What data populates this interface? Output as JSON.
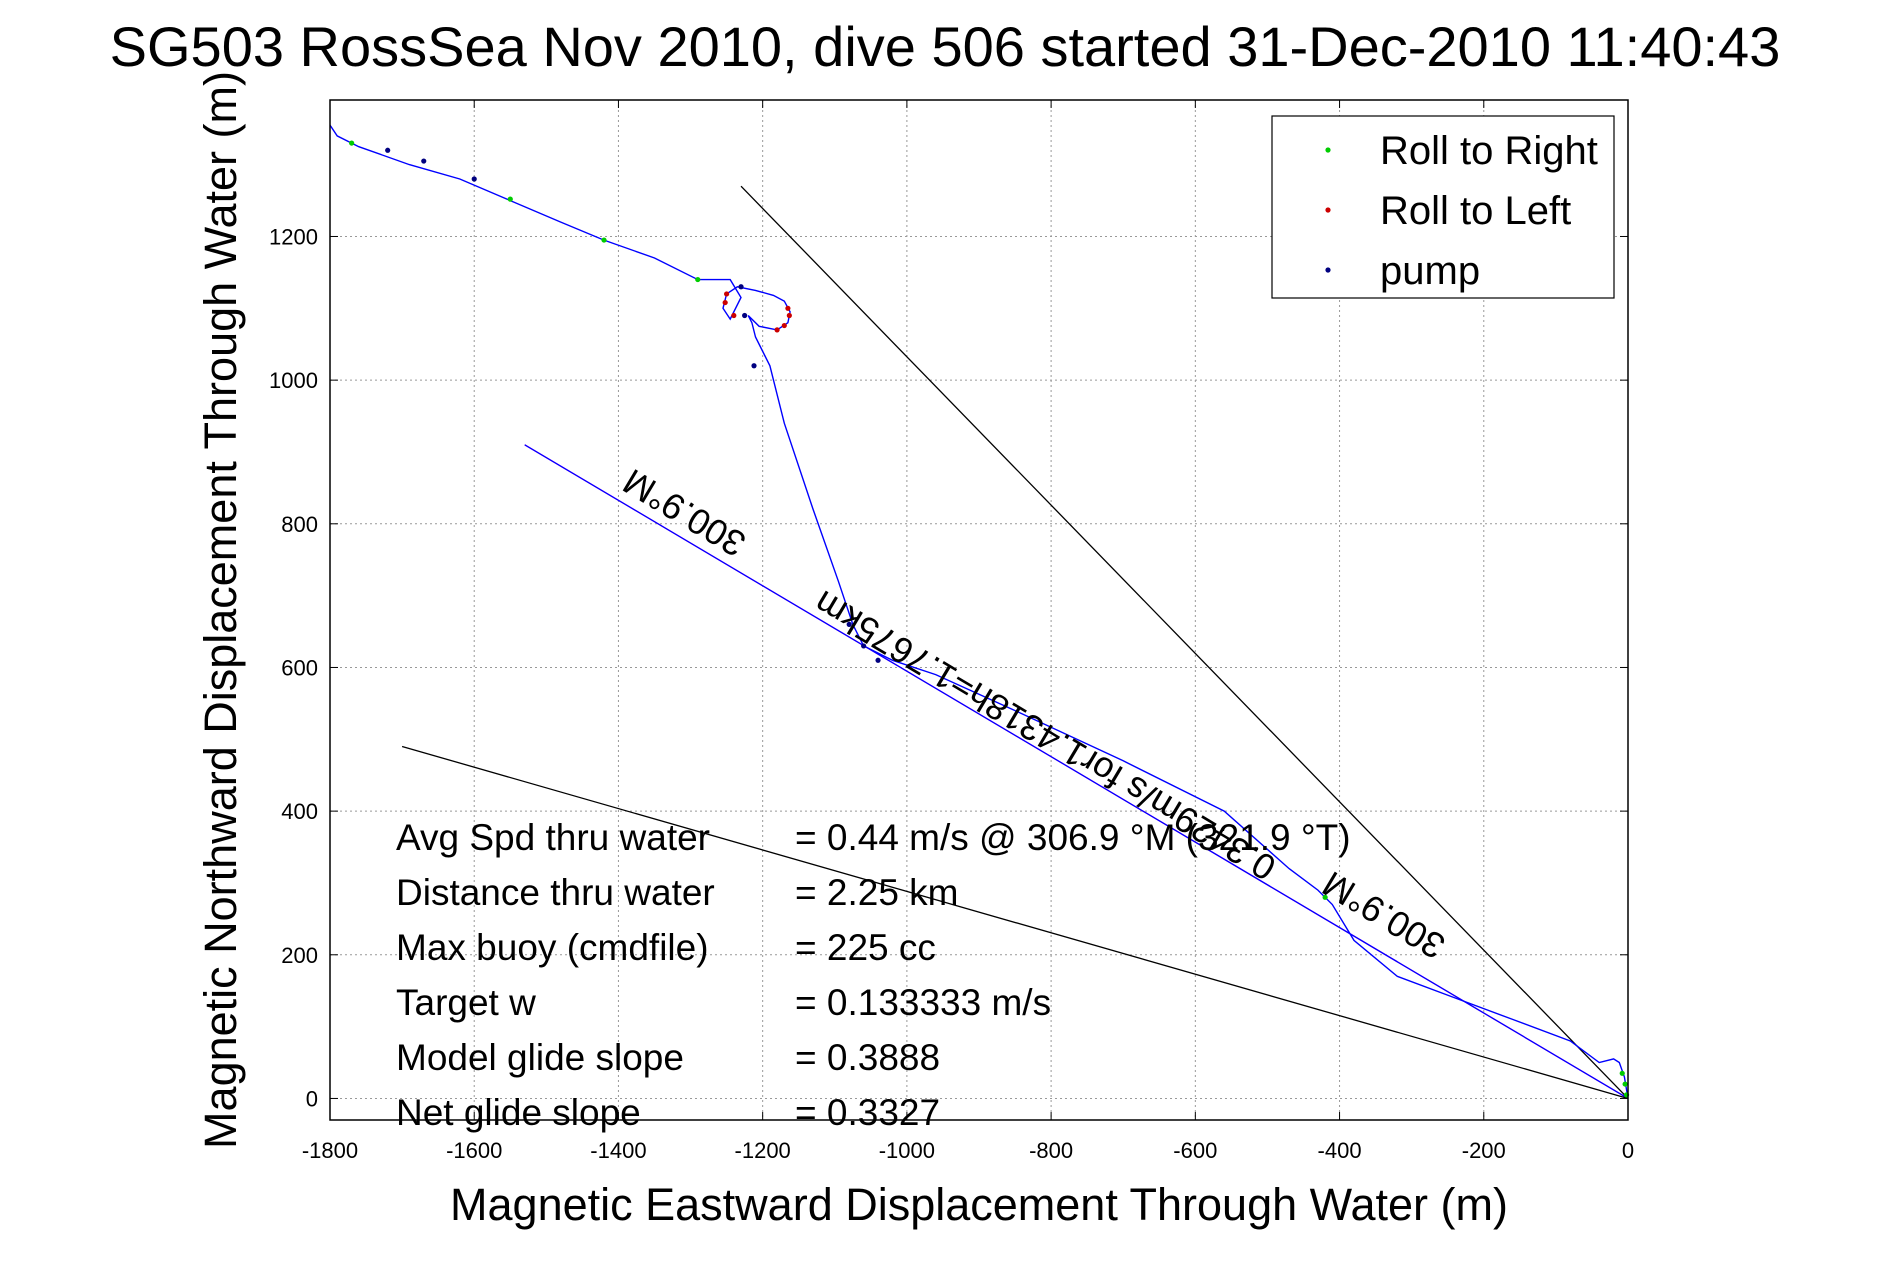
{
  "chart_data": {
    "type": "line",
    "title": "SG503 RossSea Nov 2010, dive 506 started 31-Dec-2010 11:40:43",
    "xlabel": "Magnetic Eastward Displacement Through Water (m)",
    "ylabel": "Magnetic Northward Displacement Through Water (m)",
    "xlim": [
      -1800,
      0
    ],
    "ylim": [
      -30,
      1390
    ],
    "xticks": [
      -1800,
      -1600,
      -1400,
      -1200,
      -1000,
      -800,
      -600,
      -400,
      -200,
      0
    ],
    "yticks": [
      0,
      200,
      400,
      600,
      800,
      1000,
      1200
    ],
    "grid": true,
    "legend_position": "top-right",
    "legend": [
      {
        "label": "Roll to Right",
        "color": "#00cc00"
      },
      {
        "label": "Roll to Left",
        "color": "#cc0000"
      },
      {
        "label": "pump",
        "color": "#000080"
      }
    ],
    "track": {
      "color": "#0000ff",
      "x": [
        0,
        -5,
        -12,
        -20,
        -40,
        -80,
        -160,
        -240,
        -320,
        -380,
        -410,
        -430,
        -470,
        -560,
        -700,
        -850,
        -960,
        -1020,
        -1060,
        -1075,
        -1095,
        -1130,
        -1170,
        -1190,
        -1210,
        -1215,
        -1220,
        -1205,
        -1180,
        -1165,
        -1162,
        -1170,
        -1185,
        -1210,
        -1235,
        -1250,
        -1255,
        -1245,
        -1230,
        -1245,
        -1290,
        -1350,
        -1420,
        -1480,
        -1550,
        -1620,
        -1690,
        -1760,
        -1790,
        -1800
      ],
      "y": [
        0,
        30,
        50,
        55,
        50,
        80,
        110,
        140,
        170,
        220,
        270,
        290,
        320,
        400,
        470,
        540,
        590,
        610,
        630,
        660,
        720,
        820,
        940,
        1020,
        1060,
        1080,
        1090,
        1075,
        1070,
        1080,
        1095,
        1110,
        1118,
        1125,
        1130,
        1120,
        1100,
        1085,
        1115,
        1140,
        1140,
        1170,
        1195,
        1220,
        1250,
        1280,
        1300,
        1325,
        1340,
        1355
      ]
    },
    "roll_right_points": {
      "x": [
        -2,
        -4,
        -8,
        -420,
        -1770,
        -1550,
        -1420,
        -1290
      ],
      "y": [
        5,
        20,
        35,
        280,
        1330,
        1252,
        1195,
        1140
      ]
    },
    "roll_left_points": {
      "x": [
        -1180,
        -1170,
        -1163,
        -1165,
        -1250,
        -1252,
        -1240
      ],
      "y": [
        1070,
        1076,
        1090,
        1100,
        1120,
        1108,
        1090
      ]
    },
    "pump_points": {
      "x": [
        -1720,
        -1670,
        -1600,
        -1230,
        -1225,
        -1212,
        -1080,
        -1060,
        -1040
      ],
      "y": [
        1320,
        1305,
        1280,
        1130,
        1090,
        1020,
        660,
        630,
        610
      ]
    },
    "reference_lines": [
      {
        "x": [
          0,
          -1530
        ],
        "y": [
          0,
          910
        ],
        "color": "#ff00ff"
      },
      {
        "x": [
          0,
          -1530
        ],
        "y": [
          0,
          910
        ],
        "color": "#0000ff"
      },
      {
        "x": [
          0,
          -1230
        ],
        "y": [
          0,
          1270
        ],
        "color": "#000000"
      },
      {
        "x": [
          0,
          -1700
        ],
        "y": [
          0,
          490
        ],
        "color": "#000000"
      }
    ],
    "annotations": [
      {
        "text": "300.9°M",
        "x": -1300,
        "y": 830,
        "angle": 210.8
      },
      {
        "text": "0.3429m/s for1.4318h=1.7675km",
        "x": -800,
        "y": 520,
        "angle": 210.8
      },
      {
        "text": "300.9°M",
        "x": -330,
        "y": 270,
        "angle": 210.8
      }
    ],
    "stats": [
      {
        "label": "Avg Spd thru water",
        "value": "=  0.44 m/s @ 306.9 °M (321.9 °T)"
      },
      {
        "label": "Distance thru water",
        "value": "=  2.25 km"
      },
      {
        "label": "Max buoy (cmdfile)",
        "value": "= 225 cc"
      },
      {
        "label": "Target w",
        "value": "= 0.133333 m/s"
      },
      {
        "label": "Model glide slope",
        "value": "= 0.3888"
      },
      {
        "label": "Net glide slope",
        "value": "= 0.3327"
      }
    ]
  }
}
